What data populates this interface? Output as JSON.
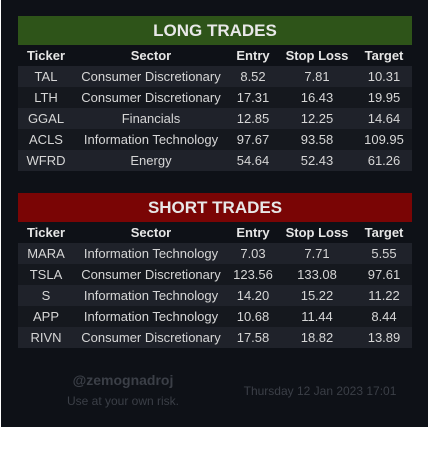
{
  "columns": {
    "ticker": "Ticker",
    "sector": "Sector",
    "entry": "Entry",
    "stop_loss": "Stop Loss",
    "target": "Target"
  },
  "colors": {
    "long_banner": "#2e5419",
    "short_banner": "#7a0505",
    "background": "#0e1117"
  },
  "long": {
    "title": "LONG TRADES",
    "rows": [
      {
        "ticker": "TAL",
        "sector": "Consumer Discretionary",
        "entry": "8.52",
        "stop_loss": "7.81",
        "target": "10.31"
      },
      {
        "ticker": "LTH",
        "sector": "Consumer Discretionary",
        "entry": "17.31",
        "stop_loss": "16.43",
        "target": "19.95"
      },
      {
        "ticker": "GGAL",
        "sector": "Financials",
        "entry": "12.85",
        "stop_loss": "12.25",
        "target": "14.64"
      },
      {
        "ticker": "ACLS",
        "sector": "Information Technology",
        "entry": "97.67",
        "stop_loss": "93.58",
        "target": "109.95"
      },
      {
        "ticker": "WFRD",
        "sector": "Energy",
        "entry": "54.64",
        "stop_loss": "52.43",
        "target": "61.26"
      }
    ]
  },
  "short": {
    "title": "SHORT TRADES",
    "rows": [
      {
        "ticker": "MARA",
        "sector": "Information Technology",
        "entry": "7.03",
        "stop_loss": "7.71",
        "target": "5.55"
      },
      {
        "ticker": "TSLA",
        "sector": "Consumer Discretionary",
        "entry": "123.56",
        "stop_loss": "133.08",
        "target": "97.61"
      },
      {
        "ticker": "S",
        "sector": "Information Technology",
        "entry": "14.20",
        "stop_loss": "15.22",
        "target": "11.22"
      },
      {
        "ticker": "APP",
        "sector": "Information Technology",
        "entry": "10.68",
        "stop_loss": "11.44",
        "target": "8.44"
      },
      {
        "ticker": "RIVN",
        "sector": "Consumer Discretionary",
        "entry": "17.58",
        "stop_loss": "18.82",
        "target": "13.89"
      }
    ]
  },
  "footer": {
    "handle": "@zemognadroj",
    "disclaimer": "Use at your own risk.",
    "timestamp": "Thursday 12 Jan 2023 17:01"
  }
}
